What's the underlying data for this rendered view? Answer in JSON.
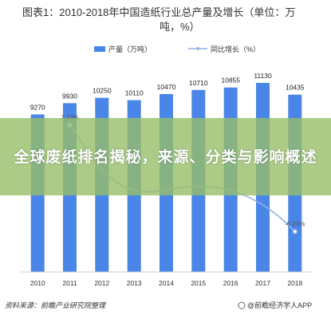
{
  "chart_data": {
    "type": "bar",
    "title": "图表1：2010-2018年中国造纸行业总产量及增长（单位：万吨，%）",
    "title_line1": "图表1：2010-2018年中国造纸行业总产量及增长（单位：万",
    "title_line2": "吨，%）",
    "categories": [
      "2010",
      "2011",
      "2012",
      "2013",
      "2014",
      "2015",
      "2016",
      "2017",
      "2018"
    ],
    "series": [
      {
        "name": "产量（万吨）",
        "kind": "bar",
        "values": [
          9270,
          9930,
          10250,
          10110,
          10470,
          10710,
          10855,
          11130,
          10435
        ],
        "labels": [
          "9270",
          "9930",
          "10250",
          "10110",
          "10470",
          "10710",
          "10855",
          "11130",
          "10435"
        ]
      },
      {
        "name": "同比增长（%）",
        "kind": "line",
        "axis": "right",
        "values": [
          null,
          7.12,
          null,
          null,
          null,
          null,
          null,
          null,
          -6.24
        ],
        "labels": [
          "",
          "7.12%",
          "",
          "",
          "",
          "",
          "",
          "",
          "-6.24%"
        ]
      }
    ],
    "ylim": [
      0,
      11500
    ],
    "grid": true,
    "legend": "top-center"
  },
  "colors": {
    "bar": "#4a86e8",
    "line": "#8fb4e3",
    "overlay": "#96be69"
  },
  "overlay_title": "全球废纸排名揭秘，来源、分类与影响概述",
  "footer": {
    "source": "资料来源：前瞻产业研究院整理",
    "brand": "@前瞻经济学人APP"
  }
}
